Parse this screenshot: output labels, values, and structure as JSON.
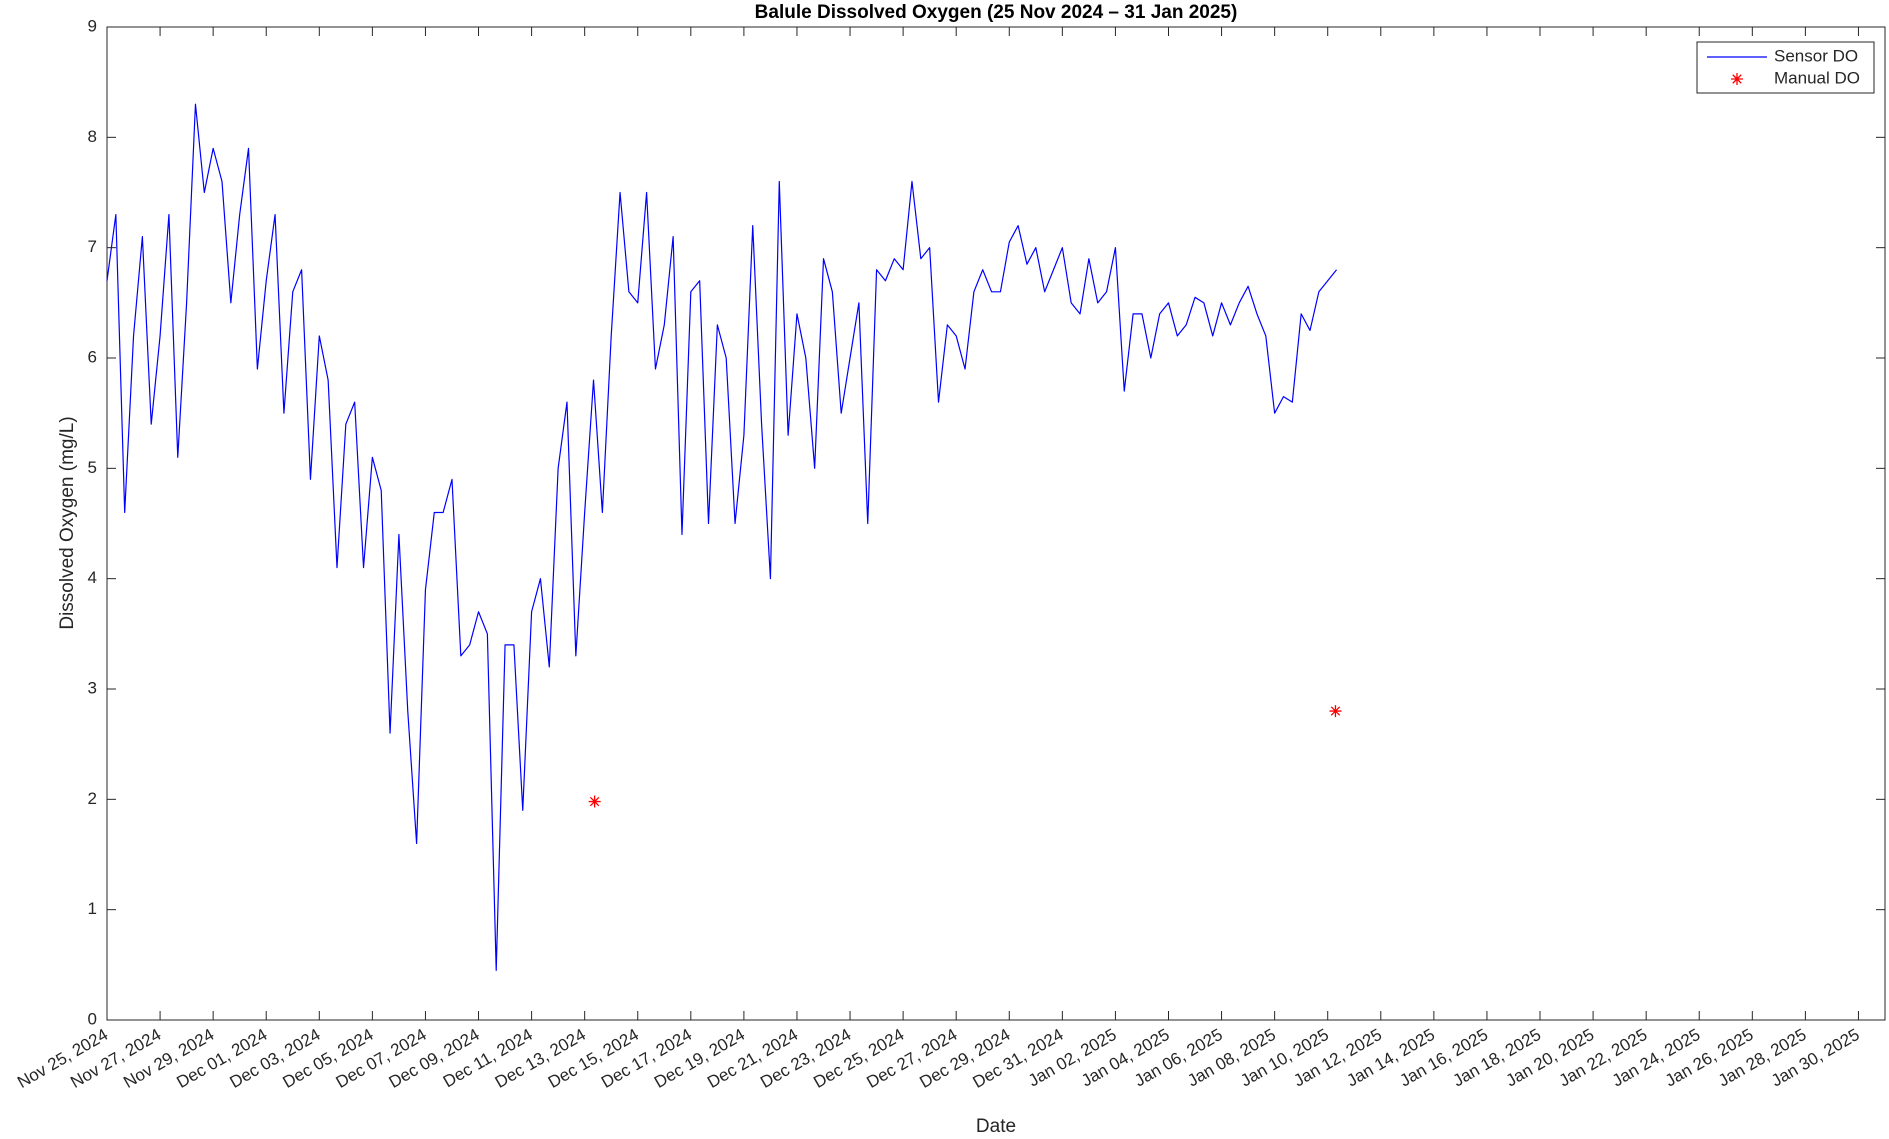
{
  "chart_data": {
    "type": "line",
    "title": "Balule Dissolved Oxygen (25 Nov 2024 – 31 Jan 2025)",
    "xlabel": "Date",
    "ylabel": "Dissolved Oxygen (mg/L)",
    "xlim": [
      "2024-11-25",
      "2025-01-31"
    ],
    "xticks": [
      {
        "value": "2024-11-25",
        "label": "Nov 25, 2024"
      },
      {
        "value": "2024-11-27",
        "label": "Nov 27, 2024"
      },
      {
        "value": "2024-11-29",
        "label": "Nov 29, 2024"
      },
      {
        "value": "2024-12-01",
        "label": "Dec 01, 2024"
      },
      {
        "value": "2024-12-03",
        "label": "Dec 03, 2024"
      },
      {
        "value": "2024-12-05",
        "label": "Dec 05, 2024"
      },
      {
        "value": "2024-12-07",
        "label": "Dec 07, 2024"
      },
      {
        "value": "2024-12-09",
        "label": "Dec 09, 2024"
      },
      {
        "value": "2024-12-11",
        "label": "Dec 11, 2024"
      },
      {
        "value": "2024-12-13",
        "label": "Dec 13, 2024"
      },
      {
        "value": "2024-12-15",
        "label": "Dec 15, 2024"
      },
      {
        "value": "2024-12-17",
        "label": "Dec 17, 2024"
      },
      {
        "value": "2024-12-19",
        "label": "Dec 19, 2024"
      },
      {
        "value": "2024-12-21",
        "label": "Dec 21, 2024"
      },
      {
        "value": "2024-12-23",
        "label": "Dec 23, 2024"
      },
      {
        "value": "2024-12-25",
        "label": "Dec 25, 2024"
      },
      {
        "value": "2024-12-27",
        "label": "Dec 27, 2024"
      },
      {
        "value": "2024-12-29",
        "label": "Dec 29, 2024"
      },
      {
        "value": "2024-12-31",
        "label": "Dec 31, 2024"
      },
      {
        "value": "2025-01-02",
        "label": "Jan 02, 2025"
      },
      {
        "value": "2025-01-04",
        "label": "Jan 04, 2025"
      },
      {
        "value": "2025-01-06",
        "label": "Jan 06, 2025"
      },
      {
        "value": "2025-01-08",
        "label": "Jan 08, 2025"
      },
      {
        "value": "2025-01-10",
        "label": "Jan 10, 2025"
      },
      {
        "value": "2025-01-12",
        "label": "Jan 12, 2025"
      },
      {
        "value": "2025-01-14",
        "label": "Jan 14, 2025"
      },
      {
        "value": "2025-01-16",
        "label": "Jan 16, 2025"
      },
      {
        "value": "2025-01-18",
        "label": "Jan 18, 2025"
      },
      {
        "value": "2025-01-20",
        "label": "Jan 20, 2025"
      },
      {
        "value": "2025-01-22",
        "label": "Jan 22, 2025"
      },
      {
        "value": "2025-01-24",
        "label": "Jan 24, 2025"
      },
      {
        "value": "2025-01-26",
        "label": "Jan 26, 2025"
      },
      {
        "value": "2025-01-28",
        "label": "Jan 28, 2025"
      },
      {
        "value": "2025-01-30",
        "label": "Jan 30, 2025"
      }
    ],
    "ylim": [
      0,
      9
    ],
    "yticks": [
      0,
      1,
      2,
      3,
      4,
      5,
      6,
      7,
      8,
      9
    ],
    "grid": false,
    "legend": "upper right",
    "series": [
      {
        "name": "Sensor DO",
        "color": "#0000ff",
        "style": "line",
        "x": [
          "2024-11-25 00:00",
          "2024-11-25 08:00",
          "2024-11-25 16:00",
          "2024-11-26 00:00",
          "2024-11-26 08:00",
          "2024-11-26 16:00",
          "2024-11-27 00:00",
          "2024-11-27 08:00",
          "2024-11-27 16:00",
          "2024-11-28 00:00",
          "2024-11-28 08:00",
          "2024-11-28 16:00",
          "2024-11-29 00:00",
          "2024-11-29 08:00",
          "2024-11-29 16:00",
          "2024-11-30 00:00",
          "2024-11-30 08:00",
          "2024-11-30 16:00",
          "2024-12-01 00:00",
          "2024-12-01 08:00",
          "2024-12-01 16:00",
          "2024-12-02 00:00",
          "2024-12-02 08:00",
          "2024-12-02 16:00",
          "2024-12-03 00:00",
          "2024-12-03 08:00",
          "2024-12-03 16:00",
          "2024-12-04 00:00",
          "2024-12-04 08:00",
          "2024-12-04 16:00",
          "2024-12-05 00:00",
          "2024-12-05 08:00",
          "2024-12-05 16:00",
          "2024-12-06 00:00",
          "2024-12-06 08:00",
          "2024-12-06 16:00",
          "2024-12-07 00:00",
          "2024-12-07 08:00",
          "2024-12-07 16:00",
          "2024-12-08 00:00",
          "2024-12-08 08:00",
          "2024-12-08 16:00",
          "2024-12-09 00:00",
          "2024-12-09 08:00",
          "2024-12-09 16:00",
          "2024-12-10 00:00",
          "2024-12-10 08:00",
          "2024-12-10 16:00",
          "2024-12-11 00:00",
          "2024-12-11 08:00",
          "2024-12-11 16:00",
          "2024-12-12 00:00",
          "2024-12-12 08:00",
          "2024-12-12 16:00",
          "2024-12-13 00:00",
          "2024-12-13 08:00",
          "2024-12-13 16:00",
          "2024-12-14 00:00",
          "2024-12-14 08:00",
          "2024-12-14 16:00",
          "2024-12-15 00:00",
          "2024-12-15 08:00",
          "2024-12-15 16:00",
          "2024-12-16 00:00",
          "2024-12-16 08:00",
          "2024-12-16 16:00",
          "2024-12-17 00:00",
          "2024-12-17 08:00",
          "2024-12-17 16:00",
          "2024-12-18 00:00",
          "2024-12-18 08:00",
          "2024-12-18 16:00",
          "2024-12-19 00:00",
          "2024-12-19 08:00",
          "2024-12-19 16:00",
          "2024-12-20 00:00",
          "2024-12-20 08:00",
          "2024-12-20 16:00",
          "2024-12-21 00:00",
          "2024-12-21 08:00",
          "2024-12-21 16:00",
          "2024-12-22 00:00",
          "2024-12-22 08:00",
          "2024-12-22 16:00",
          "2024-12-23 00:00",
          "2024-12-23 08:00",
          "2024-12-23 16:00",
          "2024-12-24 00:00",
          "2024-12-24 08:00",
          "2024-12-24 16:00",
          "2024-12-25 00:00",
          "2024-12-25 08:00",
          "2024-12-25 16:00",
          "2024-12-26 00:00",
          "2024-12-26 08:00",
          "2024-12-26 16:00",
          "2024-12-27 00:00",
          "2024-12-27 08:00",
          "2024-12-27 16:00",
          "2024-12-28 00:00",
          "2024-12-28 08:00",
          "2024-12-28 16:00",
          "2024-12-29 00:00",
          "2024-12-29 08:00",
          "2024-12-29 16:00",
          "2024-12-30 00:00",
          "2024-12-30 08:00",
          "2024-12-30 16:00",
          "2024-12-31 00:00",
          "2024-12-31 08:00",
          "2024-12-31 16:00",
          "2025-01-01 00:00",
          "2025-01-01 08:00",
          "2025-01-01 16:00",
          "2025-01-02 00:00",
          "2025-01-02 08:00",
          "2025-01-02 16:00",
          "2025-01-03 00:00",
          "2025-01-03 08:00",
          "2025-01-03 16:00",
          "2025-01-04 00:00",
          "2025-01-04 08:00",
          "2025-01-04 16:00",
          "2025-01-05 00:00",
          "2025-01-05 08:00",
          "2025-01-05 16:00",
          "2025-01-06 00:00",
          "2025-01-06 08:00",
          "2025-01-06 16:00",
          "2025-01-07 00:00",
          "2025-01-07 08:00",
          "2025-01-07 16:00",
          "2025-01-08 00:00",
          "2025-01-08 08:00",
          "2025-01-08 16:00",
          "2025-01-09 00:00",
          "2025-01-09 08:00",
          "2025-01-09 16:00",
          "2025-01-10 00:00",
          "2025-01-10 08:00"
        ],
        "values": [
          6.7,
          7.3,
          4.6,
          6.2,
          7.1,
          5.4,
          6.2,
          7.3,
          5.1,
          6.5,
          8.3,
          7.5,
          7.9,
          7.6,
          6.5,
          7.3,
          7.9,
          5.9,
          6.7,
          7.3,
          5.5,
          6.6,
          6.8,
          4.9,
          6.2,
          5.8,
          4.1,
          5.4,
          5.6,
          4.1,
          5.1,
          4.8,
          2.6,
          4.4,
          2.8,
          1.6,
          3.9,
          4.6,
          4.6,
          4.9,
          3.3,
          3.4,
          3.7,
          3.5,
          0.45,
          3.4,
          3.4,
          1.9,
          3.7,
          4.0,
          3.2,
          5.0,
          5.6,
          3.3,
          4.6,
          5.8,
          4.6,
          6.2,
          7.5,
          6.6,
          6.5,
          7.5,
          5.9,
          6.3,
          7.1,
          4.4,
          6.6,
          6.7,
          4.5,
          6.3,
          6.0,
          4.5,
          5.3,
          7.2,
          5.4,
          4.0,
          7.6,
          5.3,
          6.4,
          6.0,
          5.0,
          6.9,
          6.6,
          5.5,
          6.0,
          6.5,
          4.5,
          6.8,
          6.7,
          6.9,
          6.8,
          7.6,
          6.9,
          7.0,
          5.6,
          6.3,
          6.2,
          5.9,
          6.6,
          6.8,
          6.6,
          6.6,
          7.05,
          7.2,
          6.85,
          7.0,
          6.6,
          6.8,
          7.0,
          6.5,
          6.4,
          6.9,
          6.5,
          6.6,
          7.0,
          5.7,
          6.4,
          6.4,
          6.0,
          6.4,
          6.5,
          6.2,
          6.3,
          6.55,
          6.5,
          6.2,
          6.5,
          6.3,
          6.5,
          6.65,
          6.4,
          6.2,
          5.5,
          5.65,
          5.6,
          6.4,
          6.25,
          6.6,
          6.7,
          6.8
        ]
      },
      {
        "name": "Manual DO",
        "color": "#ff0000",
        "style": "marker",
        "marker": "asterisk",
        "x": [
          "2024-12-13 09:00",
          "2025-01-10 07:00"
        ],
        "values": [
          1.98,
          2.8
        ]
      }
    ]
  }
}
